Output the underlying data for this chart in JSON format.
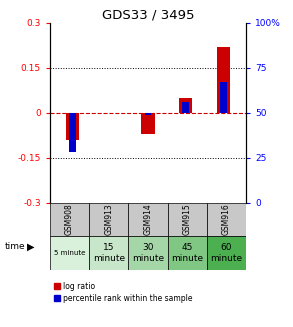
{
  "title": "GDS33 / 3495",
  "samples": [
    "GSM908",
    "GSM913",
    "GSM914",
    "GSM915",
    "GSM916"
  ],
  "time_labels": [
    "5 minute",
    "15\nminute",
    "30\nminute",
    "45\nminute",
    "60\nminute"
  ],
  "time_colors": [
    "#d9f0da",
    "#c8e6c9",
    "#a5d6a7",
    "#81c784",
    "#4caf50"
  ],
  "log_ratio": [
    -0.09,
    0.0,
    -0.07,
    0.05,
    0.22
  ],
  "percentile_rank": [
    28,
    50,
    49,
    56,
    67
  ],
  "ylim_left": [
    -0.3,
    0.3
  ],
  "ylim_right": [
    0,
    100
  ],
  "yticks_left": [
    -0.3,
    -0.15,
    0,
    0.15,
    0.3
  ],
  "yticks_right": [
    0,
    25,
    50,
    75,
    100
  ],
  "bar_color_red": "#cc0000",
  "bar_color_blue": "#0000cc",
  "zero_line_color": "#cc0000",
  "background_color": "#ffffff",
  "table_header_color": "#c8c8c8",
  "bar_width": 0.35,
  "blue_bar_width": 0.18
}
